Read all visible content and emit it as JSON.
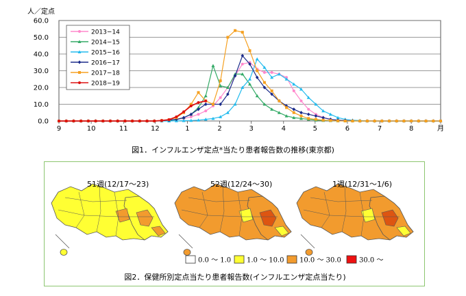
{
  "chart_data": [
    {
      "type": "line",
      "title": "",
      "caption": "図1．インフルエンザ定点*当たり患者報告数の推移(東京都)",
      "ylabel": "人／定点",
      "xlabel": "",
      "ylim": [
        0,
        60
      ],
      "yticks": [
        "0.0",
        "10.0",
        "20.0",
        "30.0",
        "40.0",
        "50.0",
        "60.0"
      ],
      "xtick_labels": [
        "9",
        "10",
        "11",
        "12",
        "1",
        "2",
        "3",
        "4",
        "5",
        "6",
        "7",
        "8",
        "月"
      ],
      "grid": true,
      "legend": "top-left",
      "series": [
        {
          "name": "2013−14",
          "color": "#ff88cc",
          "marker": "circle",
          "values": [
            0,
            0,
            0,
            0,
            0,
            0,
            0,
            0,
            0,
            0,
            0,
            0,
            0,
            0,
            0.2,
            0.5,
            1,
            1.5,
            2.5,
            4,
            6,
            9,
            14,
            20,
            27,
            34,
            35,
            31,
            29,
            29,
            28,
            26,
            18,
            12,
            7,
            4,
            2,
            1,
            0.5,
            0.3,
            0.2,
            0.1,
            0.1,
            0,
            0,
            0,
            0,
            0,
            0,
            0,
            0,
            0,
            0
          ]
        },
        {
          "name": "2014−15",
          "color": "#33aa66",
          "marker": "triangle",
          "values": [
            0,
            0,
            0,
            0,
            0,
            0,
            0,
            0,
            0,
            0,
            0,
            0,
            0,
            0,
            0.1,
            0.3,
            0.8,
            2,
            4,
            8,
            15,
            33,
            21,
            20,
            28,
            28,
            22,
            15,
            10,
            7,
            5,
            3,
            2,
            1.5,
            1,
            0.5,
            0.3,
            0.2,
            0.1,
            0,
            0,
            0,
            0,
            0,
            0,
            0,
            0,
            0,
            0,
            0,
            0,
            0,
            0
          ]
        },
        {
          "name": "2015−16",
          "color": "#22bbee",
          "marker": "triangle",
          "values": [
            0,
            0,
            0,
            0,
            0,
            0,
            0,
            0,
            0,
            0,
            0,
            0,
            0,
            0,
            0,
            0,
            0.1,
            0.2,
            0.3,
            0.5,
            1,
            1.5,
            2.5,
            5,
            10,
            20,
            25,
            37,
            32,
            26,
            28,
            25,
            22,
            19,
            14,
            10,
            6,
            4,
            2,
            1,
            0.5,
            0.3,
            0.1,
            0,
            0,
            0,
            0,
            0,
            0,
            0,
            0,
            0,
            0
          ]
        },
        {
          "name": "2016−17",
          "color": "#1a2a8a",
          "marker": "diamond",
          "values": [
            0,
            0,
            0,
            0,
            0,
            0,
            0,
            0,
            0,
            0,
            0,
            0,
            0,
            0,
            0.2,
            0.5,
            1,
            2,
            4,
            7,
            10,
            10,
            10,
            16,
            27,
            39,
            34,
            26,
            20,
            16,
            12,
            9,
            7,
            5,
            4,
            3,
            2,
            1,
            0.5,
            0.3,
            0.1,
            0,
            0,
            0,
            0,
            0,
            0,
            0,
            0,
            0,
            0,
            0,
            0
          ]
        },
        {
          "name": "2017−18",
          "color": "#f5a020",
          "marker": "square",
          "values": [
            0,
            0,
            0,
            0,
            0,
            0,
            0,
            0,
            0,
            0,
            0,
            0,
            0,
            0,
            0.3,
            0.8,
            2,
            5,
            10,
            17,
            12,
            10,
            24,
            50,
            54,
            53,
            42,
            30,
            23,
            18,
            12,
            8,
            5,
            3,
            1.5,
            1,
            0.5,
            0.3,
            0.1,
            0,
            0,
            0,
            0,
            0,
            0,
            0,
            0,
            0,
            0,
            0,
            0,
            0,
            0
          ]
        },
        {
          "name": "2018−19",
          "color": "#dd1111",
          "marker": "circle",
          "values": [
            0,
            0,
            0,
            0,
            0,
            0,
            0,
            0,
            0,
            0,
            0,
            0,
            0,
            0,
            0.3,
            0.8,
            2.5,
            5.5,
            9,
            11,
            12
          ]
        }
      ]
    },
    {
      "type": "choropleth",
      "caption": "図2．保健所別定点当たり患者報告数(インフルエンザ定点当たり)",
      "maps": [
        {
          "title": "51週(12/17〜23)"
        },
        {
          "title": "52週(12/24〜30)"
        },
        {
          "title": "1週(12/31〜1/6)"
        }
      ],
      "key": [
        {
          "label": "0.0 ～ 1.0",
          "color": "#ffffff"
        },
        {
          "label": "1.0 ～ 10.0",
          "color": "#ffff33"
        },
        {
          "label": "10.0 ～ 30.0",
          "color": "#f29b2e"
        },
        {
          "label": "30.0 ～",
          "color": "#ee1111"
        }
      ]
    }
  ]
}
